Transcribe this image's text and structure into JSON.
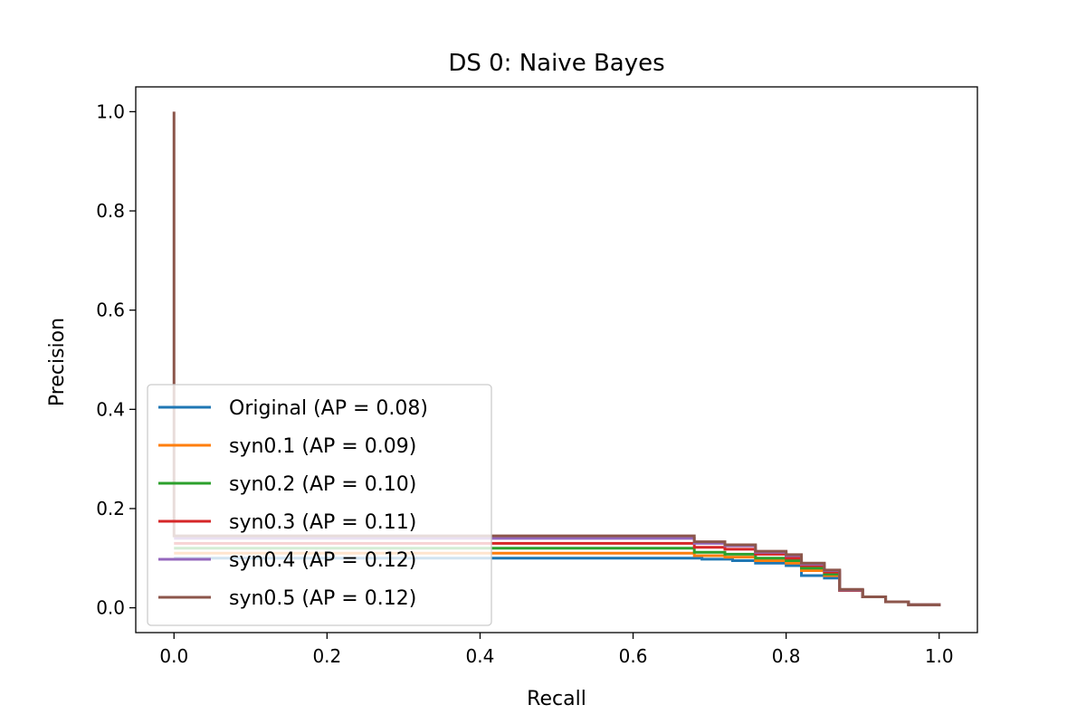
{
  "chart_data": {
    "type": "line",
    "title": "DS 0: Naive Bayes",
    "xlabel": "Recall",
    "ylabel": "Precision",
    "xlim": [
      -0.05,
      1.05
    ],
    "ylim": [
      -0.05,
      1.05
    ],
    "xticks": [
      "0.0",
      "0.2",
      "0.4",
      "0.6",
      "0.8",
      "1.0"
    ],
    "yticks": [
      "0.0",
      "0.2",
      "0.4",
      "0.6",
      "0.8",
      "1.0"
    ],
    "grid": false,
    "legend_position": "lower-left",
    "series": [
      {
        "name": "Original (AP = 0.08)",
        "color": "#1f77b4",
        "points": [
          [
            0.0,
            0.1
          ],
          [
            0.66,
            0.1
          ],
          [
            0.69,
            0.098
          ],
          [
            0.73,
            0.095
          ],
          [
            0.76,
            0.09
          ],
          [
            0.8,
            0.085
          ],
          [
            0.82,
            0.065
          ],
          [
            0.85,
            0.06
          ],
          [
            0.87,
            0.05
          ],
          [
            0.87,
            0.035
          ],
          [
            0.9,
            0.022
          ],
          [
            0.93,
            0.012
          ],
          [
            0.96,
            0.006
          ],
          [
            1.0,
            0.003
          ]
        ]
      },
      {
        "name": "syn0.1 (AP = 0.09)",
        "color": "#ff7f0e",
        "points": [
          [
            0.0,
            0.11
          ],
          [
            0.66,
            0.11
          ],
          [
            0.68,
            0.105
          ],
          [
            0.72,
            0.102
          ],
          [
            0.76,
            0.095
          ],
          [
            0.8,
            0.09
          ],
          [
            0.82,
            0.075
          ],
          [
            0.85,
            0.065
          ],
          [
            0.87,
            0.055
          ],
          [
            0.87,
            0.035
          ],
          [
            0.9,
            0.022
          ],
          [
            0.93,
            0.012
          ],
          [
            0.96,
            0.006
          ],
          [
            1.0,
            0.003
          ]
        ]
      },
      {
        "name": "syn0.2 (AP = 0.10)",
        "color": "#2ca02c",
        "points": [
          [
            0.0,
            0.12
          ],
          [
            0.66,
            0.12
          ],
          [
            0.68,
            0.112
          ],
          [
            0.72,
            0.108
          ],
          [
            0.76,
            0.1
          ],
          [
            0.8,
            0.095
          ],
          [
            0.82,
            0.08
          ],
          [
            0.85,
            0.068
          ],
          [
            0.87,
            0.058
          ],
          [
            0.87,
            0.035
          ],
          [
            0.9,
            0.022
          ],
          [
            0.93,
            0.012
          ],
          [
            0.96,
            0.006
          ],
          [
            1.0,
            0.003
          ]
        ]
      },
      {
        "name": "syn0.3 (AP = 0.11)",
        "color": "#d62728",
        "points": [
          [
            0.0,
            0.13
          ],
          [
            0.66,
            0.13
          ],
          [
            0.68,
            0.122
          ],
          [
            0.72,
            0.118
          ],
          [
            0.76,
            0.108
          ],
          [
            0.8,
            0.1
          ],
          [
            0.82,
            0.085
          ],
          [
            0.85,
            0.072
          ],
          [
            0.87,
            0.062
          ],
          [
            0.87,
            0.035
          ],
          [
            0.9,
            0.022
          ],
          [
            0.93,
            0.012
          ],
          [
            0.96,
            0.006
          ],
          [
            1.0,
            0.003
          ]
        ]
      },
      {
        "name": "syn0.4 (AP = 0.12)",
        "color": "#9467bd",
        "points": [
          [
            0.0,
            0.14
          ],
          [
            0.66,
            0.14
          ],
          [
            0.68,
            0.13
          ],
          [
            0.72,
            0.125
          ],
          [
            0.76,
            0.112
          ],
          [
            0.8,
            0.105
          ],
          [
            0.82,
            0.088
          ],
          [
            0.85,
            0.075
          ],
          [
            0.87,
            0.065
          ],
          [
            0.87,
            0.036
          ],
          [
            0.9,
            0.022
          ],
          [
            0.93,
            0.012
          ],
          [
            0.96,
            0.006
          ],
          [
            1.0,
            0.003
          ]
        ]
      },
      {
        "name": "syn0.5 (AP = 0.12)",
        "color": "#8c564b",
        "points": [
          [
            0.0,
            1.0
          ],
          [
            0.0,
            0.145
          ],
          [
            0.66,
            0.145
          ],
          [
            0.68,
            0.133
          ],
          [
            0.72,
            0.127
          ],
          [
            0.76,
            0.114
          ],
          [
            0.8,
            0.107
          ],
          [
            0.82,
            0.09
          ],
          [
            0.85,
            0.076
          ],
          [
            0.87,
            0.066
          ],
          [
            0.87,
            0.037
          ],
          [
            0.9,
            0.022
          ],
          [
            0.93,
            0.012
          ],
          [
            0.96,
            0.006
          ],
          [
            1.0,
            0.003
          ]
        ]
      }
    ]
  }
}
